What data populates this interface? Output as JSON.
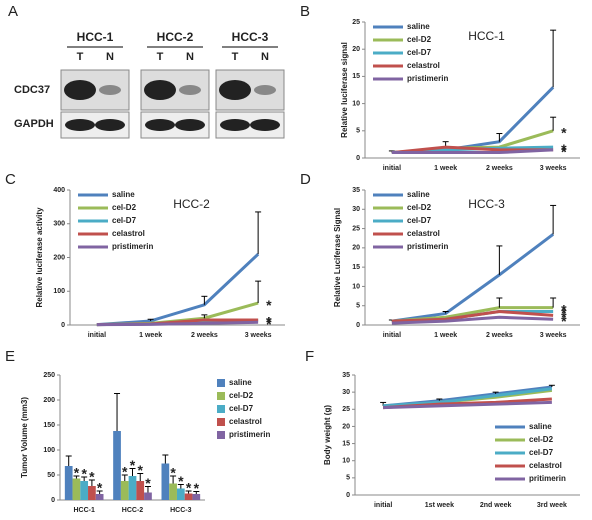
{
  "blot": {
    "panel": "A",
    "groups": [
      "HCC-1",
      "HCC-2",
      "HCC-3"
    ],
    "lanes": [
      "T",
      "N"
    ],
    "proteins": [
      "CDC37",
      "GAPDH"
    ]
  },
  "chart_data": [
    {
      "panel": "B",
      "type": "line",
      "title": "HCC-1",
      "y_label": "Relative luciferase signal",
      "legend": "upper left",
      "categories": [
        "initial",
        "1 week",
        "2 weeks",
        "3 weeks"
      ],
      "ylim": [
        0,
        25
      ],
      "yticks": [
        0,
        5,
        10,
        15,
        20,
        25
      ],
      "series": [
        {
          "name": "saline",
          "color": "#4f81bd",
          "values": [
            1,
            1.5,
            3,
            13
          ],
          "errors": [
            0.3,
            1.5,
            1.5,
            10.5
          ],
          "significance": [
            null,
            null,
            null,
            null
          ]
        },
        {
          "name": "cel-D2",
          "color": "#9bbb59",
          "values": [
            1,
            1.8,
            2,
            5
          ],
          "errors": [
            null,
            null,
            null,
            2.5
          ],
          "significance": [
            null,
            null,
            null,
            "*"
          ]
        },
        {
          "name": "cel-D7",
          "color": "#4bacc6",
          "values": [
            1,
            1.5,
            1.8,
            2
          ],
          "significance": [
            null,
            null,
            null,
            "*"
          ]
        },
        {
          "name": "celastrol",
          "color": "#c0504d",
          "values": [
            1,
            2,
            1.5,
            1.5
          ],
          "significance": [
            null,
            null,
            null,
            "*"
          ]
        },
        {
          "name": "pristimerin",
          "color": "#8064a2",
          "values": [
            1,
            1,
            1,
            1.5
          ],
          "significance": [
            null,
            null,
            null,
            "*"
          ]
        }
      ]
    },
    {
      "panel": "C",
      "type": "line",
      "title": "HCC-2",
      "y_label": "Relative luciferase activity",
      "legend": "upper left",
      "categories": [
        "initial",
        "1 week",
        "2 weeks",
        "3 weeks"
      ],
      "ylim": [
        0,
        400
      ],
      "yticks": [
        0,
        100,
        200,
        300,
        400
      ],
      "series": [
        {
          "name": "saline",
          "color": "#4f81bd",
          "values": [
            1,
            12,
            60,
            210
          ],
          "errors": [
            null,
            5,
            25,
            125
          ],
          "significance": [
            null,
            null,
            null,
            null
          ]
        },
        {
          "name": "cel-D2",
          "color": "#9bbb59",
          "values": [
            1,
            5,
            20,
            65
          ],
          "errors": [
            null,
            null,
            10,
            65
          ],
          "significance": [
            null,
            null,
            null,
            "*"
          ]
        },
        {
          "name": "cel-D7",
          "color": "#4bacc6",
          "values": [
            1,
            3,
            12,
            15
          ],
          "significance": [
            null,
            null,
            null,
            "*"
          ]
        },
        {
          "name": "celastrol",
          "color": "#c0504d",
          "values": [
            1,
            3,
            15,
            15
          ],
          "significance": [
            null,
            null,
            null,
            "*"
          ]
        },
        {
          "name": "pristimerin",
          "color": "#8064a2",
          "values": [
            1,
            2,
            5,
            8
          ],
          "significance": [
            null,
            null,
            null,
            "*"
          ]
        }
      ]
    },
    {
      "panel": "D",
      "type": "line",
      "title": "HCC-3",
      "y_label": "Relative Luciferase Signal",
      "legend": "upper left",
      "categories": [
        "initial",
        "1 week",
        "2 weeks",
        "3 weeks"
      ],
      "ylim": [
        0,
        35
      ],
      "yticks": [
        0,
        5,
        10,
        15,
        20,
        25,
        30,
        35
      ],
      "series": [
        {
          "name": "saline",
          "color": "#4f81bd",
          "values": [
            1,
            3,
            13,
            23.5
          ],
          "errors": [
            0.3,
            0.5,
            7.5,
            7.5
          ],
          "significance": [
            null,
            null,
            null,
            null
          ]
        },
        {
          "name": "cel-D2",
          "color": "#9bbb59",
          "values": [
            1,
            2,
            4.5,
            4.5
          ],
          "errors": [
            null,
            null,
            2.5,
            2.5
          ],
          "significance": [
            null,
            null,
            null,
            "*"
          ]
        },
        {
          "name": "cel-D7",
          "color": "#4bacc6",
          "values": [
            1,
            1.5,
            3.5,
            3.5
          ],
          "significance": [
            null,
            null,
            null,
            "*"
          ]
        },
        {
          "name": "celastrol",
          "color": "#c0504d",
          "values": [
            1,
            1.5,
            3.5,
            2.5
          ],
          "significance": [
            null,
            null,
            null,
            "*"
          ]
        },
        {
          "name": "pristimerin",
          "color": "#8064a2",
          "values": [
            0.5,
            1,
            2,
            1.5
          ],
          "significance": [
            null,
            null,
            null,
            "*"
          ]
        }
      ]
    },
    {
      "panel": "E",
      "type": "bar",
      "y_label": "Tumor Volume (mm3)",
      "legend": "right",
      "categories": [
        "HCC-1",
        "HCC-2",
        "HCC-3"
      ],
      "ylim": [
        0,
        250
      ],
      "yticks": [
        0,
        50,
        100,
        150,
        200,
        250
      ],
      "series": [
        {
          "name": "saline",
          "color": "#4f81bd",
          "values": [
            68,
            138,
            73
          ],
          "errors": [
            20,
            75,
            17
          ],
          "significance": [
            null,
            null,
            null
          ]
        },
        {
          "name": "cel-D2",
          "color": "#9bbb59",
          "values": [
            43,
            38,
            33
          ],
          "errors": [
            5,
            12,
            15
          ],
          "significance": [
            "*",
            "*",
            "*"
          ]
        },
        {
          "name": "cel-D7",
          "color": "#4bacc6",
          "values": [
            38,
            48,
            23
          ],
          "errors": [
            8,
            15,
            8
          ],
          "significance": [
            "*",
            "*",
            "*"
          ]
        },
        {
          "name": "celastrol",
          "color": "#c0504d",
          "values": [
            28,
            38,
            13
          ],
          "errors": [
            12,
            15,
            5
          ],
          "significance": [
            "*",
            "*",
            "*"
          ]
        },
        {
          "name": "pristimerin",
          "color": "#8064a2",
          "values": [
            12,
            15,
            12
          ],
          "errors": [
            6,
            12,
            5
          ],
          "significance": [
            "*",
            "*",
            "*"
          ]
        }
      ]
    },
    {
      "panel": "F",
      "type": "line",
      "y_label": "Body weight (g)",
      "legend": "lower right",
      "categories": [
        "initial",
        "1st week",
        "2nd week",
        "3rd week"
      ],
      "ylim": [
        0,
        35
      ],
      "yticks": [
        0,
        5,
        10,
        15,
        20,
        25,
        30,
        35
      ],
      "series": [
        {
          "name": "saline",
          "color": "#4f81bd",
          "values": [
            26,
            27.5,
            29.5,
            31.5
          ],
          "errors": [
            1,
            0.5,
            0.5,
            0.5
          ]
        },
        {
          "name": "cel-D2",
          "color": "#9bbb59",
          "values": [
            25.5,
            27,
            28.5,
            30.5
          ]
        },
        {
          "name": "cel-D7",
          "color": "#4bacc6",
          "values": [
            26,
            27,
            29,
            31
          ]
        },
        {
          "name": "celastrol",
          "color": "#c0504d",
          "values": [
            25.5,
            26.5,
            27,
            28
          ]
        },
        {
          "name": "pritimerin",
          "color": "#8064a2",
          "values": [
            25.5,
            26,
            26.5,
            27
          ]
        }
      ]
    }
  ]
}
